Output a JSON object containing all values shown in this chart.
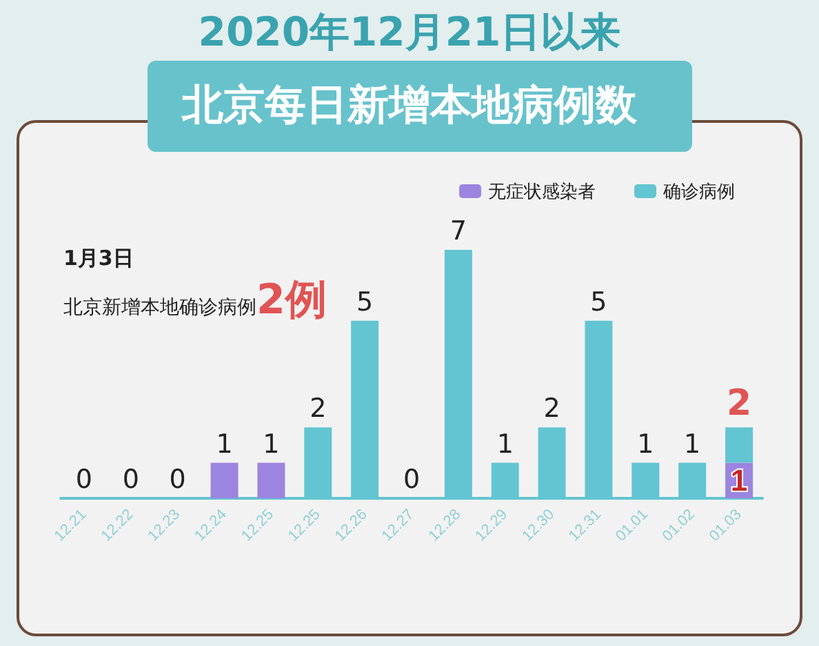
{
  "chart_data": {
    "type": "bar",
    "title": "2020年12月21日以来",
    "subtitle": "北京每日新增本地病例数",
    "annotations": [
      "1月3日",
      "北京新增本地确诊病例",
      "2例"
    ],
    "categories": [
      "12.21",
      "12.22",
      "12.23",
      "12.24",
      "12.25",
      "12.25",
      "12.26",
      "12.27",
      "12.28",
      "12.29",
      "12.30",
      "12.31",
      "01.01",
      "01.02",
      "01.03"
    ],
    "stacked": true,
    "legend": "top right",
    "tick_labels": "x",
    "grid": false,
    "series": [
      {
        "name": "无症状感染者",
        "color": "#9b85e0",
        "values": [
          null,
          null,
          null,
          1,
          1,
          null,
          null,
          null,
          null,
          null,
          null,
          null,
          null,
          null,
          1
        ],
        "value_labels": [
          null,
          null,
          null,
          null,
          null,
          null,
          null,
          null,
          null,
          null,
          null,
          null,
          null,
          null,
          "1"
        ]
      },
      {
        "name": "确诊病例",
        "color": "#62c5d1",
        "values": [
          0,
          0,
          0,
          null,
          null,
          2,
          5,
          0,
          7,
          1,
          2,
          5,
          1,
          1,
          1
        ]
      }
    ],
    "totals": [
      "0",
      "0",
      "0",
      "1",
      "1",
      "2",
      "5",
      "0",
      "7",
      "1",
      "2",
      "5",
      "1",
      "1",
      "2"
    ]
  }
}
